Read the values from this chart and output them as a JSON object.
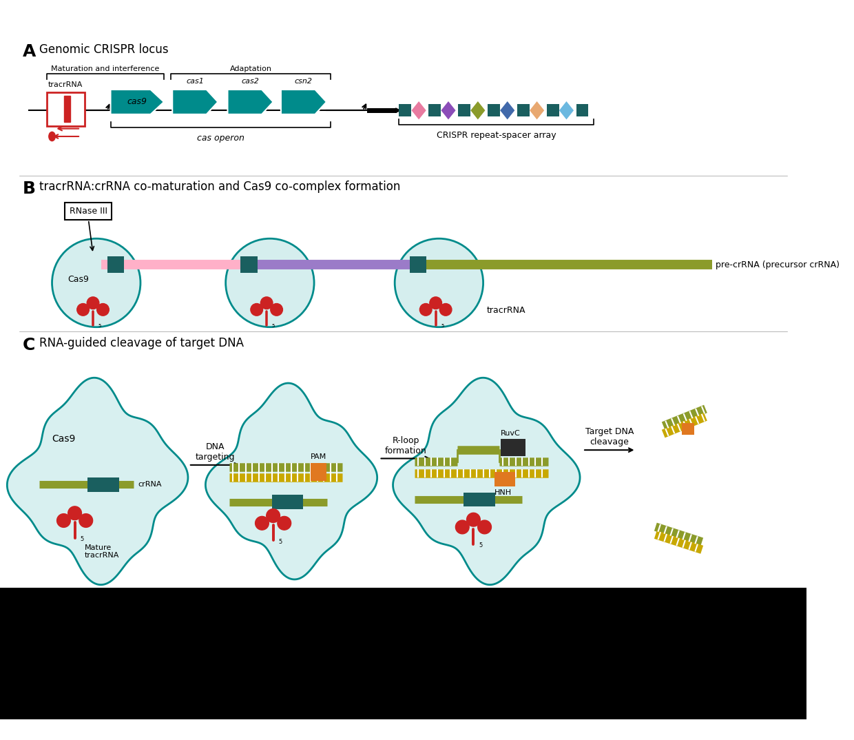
{
  "bg_color": "#ffffff",
  "teal": "#008B8B",
  "red": "#CC2222",
  "dark_teal": "#1a5f5f",
  "olive": "#8B9B2A",
  "yellow_gold": "#C8A800",
  "pink_light": "#FFB0C8",
  "purple": "#9B7BC8",
  "orange": "#E07820",
  "spacer_colors": [
    "#E87BA0",
    "#8B4DB8",
    "#8B9B2A",
    "#4169AA",
    "#E8A870",
    "#6BB8E0"
  ],
  "panel_A_label": "A",
  "panel_B_label": "B",
  "panel_C_label": "C",
  "title_A": "Genomic CRISPR locus",
  "title_B": "tracrRNA:crRNA co-maturation and Cas9 co-complex formation",
  "title_C": "RNA-guided cleavage of target DNA",
  "label_maturation": "Maturation and interference",
  "label_adaptation": "Adaptation",
  "label_tracrRNA": "tracrRNA",
  "label_cas9": "cas9",
  "label_cas1": "cas1",
  "label_cas2": "cas2",
  "label_csn2": "csn2",
  "label_cas_operon": "cas operon",
  "label_crispr_array": "CRISPR repeat-spacer array",
  "label_rnase": "RNase III",
  "label_cas9_b": "Cas9",
  "label_precrna": "pre-crRNA (precursor crRNA)",
  "label_tracrrna_b": "tracrRNA",
  "label_cas9_c": "Cas9",
  "label_crRNA": "crRNA",
  "label_mature": "Mature\ntracrRNA",
  "label_DNA_targeting": "DNA\ntargeting",
  "label_PAM": "PAM",
  "label_Rloop": "R-loop\nformation",
  "label_RuvC": "RuvC",
  "label_HNH": "HNH",
  "label_target_cleavage": "Target DNA\ncleavage"
}
